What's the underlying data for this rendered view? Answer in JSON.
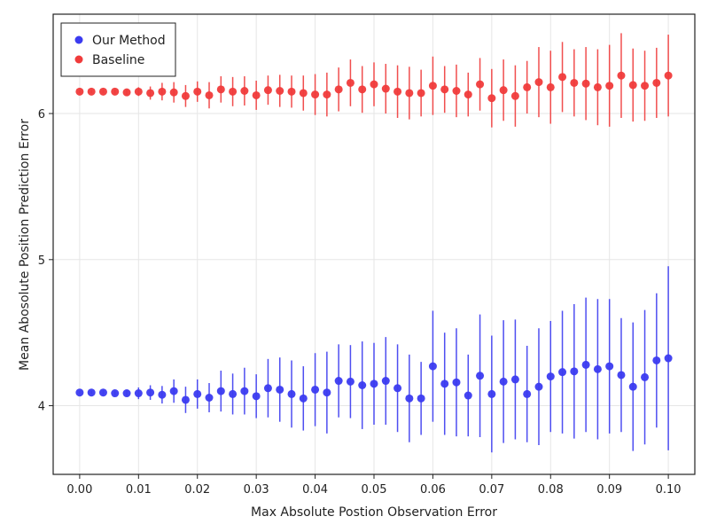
{
  "chart_data": {
    "type": "scatter",
    "title": "",
    "xlabel": "Max Absolute Postion Observation Error",
    "ylabel": "Mean Abosolute Position Prediction Error",
    "xlim": [
      -0.0045,
      0.1045
    ],
    "ylim": [
      3.53,
      6.68
    ],
    "xticks": [
      0.0,
      0.01,
      0.02,
      0.03,
      0.04,
      0.05,
      0.06,
      0.07,
      0.08,
      0.09,
      0.1
    ],
    "xtick_labels": [
      "0.00",
      "0.01",
      "0.02",
      "0.03",
      "0.04",
      "0.05",
      "0.06",
      "0.07",
      "0.08",
      "0.09",
      "0.10"
    ],
    "yticks": [
      4,
      5,
      6
    ],
    "ytick_labels": [
      "4",
      "5",
      "6"
    ],
    "grid": true,
    "legend_position": "top-left",
    "x": [
      0.0,
      0.002,
      0.004,
      0.006,
      0.008,
      0.01,
      0.012,
      0.014,
      0.016,
      0.018,
      0.02,
      0.022,
      0.024,
      0.026,
      0.028,
      0.03,
      0.032,
      0.034,
      0.036,
      0.038,
      0.04,
      0.042,
      0.044,
      0.046,
      0.048,
      0.05,
      0.052,
      0.054,
      0.056,
      0.058,
      0.06,
      0.062,
      0.064,
      0.066,
      0.068,
      0.07,
      0.072,
      0.074,
      0.076,
      0.078,
      0.08,
      0.082,
      0.084,
      0.086,
      0.088,
      0.09,
      0.092,
      0.094,
      0.096,
      0.098,
      0.1
    ],
    "series": [
      {
        "name": "Our Method",
        "color": "#3b3bf0",
        "values": [
          4.09,
          4.09,
          4.09,
          4.085,
          4.085,
          4.085,
          4.09,
          4.075,
          4.1,
          4.04,
          4.08,
          4.055,
          4.1,
          4.08,
          4.1,
          4.065,
          4.12,
          4.11,
          4.08,
          4.05,
          4.11,
          4.09,
          4.17,
          4.165,
          4.14,
          4.15,
          4.17,
          4.12,
          4.05,
          4.05,
          4.27,
          4.15,
          4.16,
          4.07,
          4.205,
          4.08,
          4.165,
          4.18,
          4.08,
          4.13,
          4.2,
          4.23,
          4.235,
          4.28,
          4.25,
          4.27,
          4.21,
          4.13,
          4.195,
          4.31,
          4.325
        ],
        "errors": [
          0.01,
          0.01,
          0.015,
          0.015,
          0.02,
          0.04,
          0.05,
          0.06,
          0.08,
          0.09,
          0.1,
          0.1,
          0.14,
          0.14,
          0.16,
          0.15,
          0.2,
          0.22,
          0.23,
          0.22,
          0.25,
          0.28,
          0.25,
          0.25,
          0.3,
          0.28,
          0.3,
          0.3,
          0.3,
          0.25,
          0.38,
          0.35,
          0.37,
          0.28,
          0.42,
          0.4,
          0.42,
          0.41,
          0.33,
          0.4,
          0.38,
          0.42,
          0.46,
          0.46,
          0.48,
          0.46,
          0.39,
          0.44,
          0.46,
          0.46,
          0.63
        ]
      },
      {
        "name": "Baseline",
        "color": "#f03b3b",
        "values": [
          6.15,
          6.15,
          6.15,
          6.15,
          6.145,
          6.15,
          6.14,
          6.15,
          6.145,
          6.12,
          6.15,
          6.125,
          6.165,
          6.15,
          6.155,
          6.125,
          6.16,
          6.155,
          6.15,
          6.14,
          6.13,
          6.13,
          6.165,
          6.21,
          6.165,
          6.2,
          6.17,
          6.15,
          6.14,
          6.14,
          6.19,
          6.165,
          6.155,
          6.13,
          6.2,
          6.105,
          6.16,
          6.12,
          6.18,
          6.215,
          6.18,
          6.25,
          6.21,
          6.205,
          6.18,
          6.19,
          6.26,
          6.195,
          6.19,
          6.21,
          6.26
        ],
        "errors": [
          0.01,
          0.01,
          0.01,
          0.015,
          0.02,
          0.03,
          0.045,
          0.06,
          0.07,
          0.075,
          0.07,
          0.09,
          0.09,
          0.1,
          0.1,
          0.1,
          0.1,
          0.11,
          0.11,
          0.12,
          0.14,
          0.15,
          0.15,
          0.16,
          0.16,
          0.15,
          0.17,
          0.18,
          0.18,
          0.16,
          0.2,
          0.16,
          0.18,
          0.15,
          0.18,
          0.2,
          0.21,
          0.21,
          0.18,
          0.24,
          0.25,
          0.24,
          0.23,
          0.25,
          0.26,
          0.28,
          0.29,
          0.25,
          0.24,
          0.24,
          0.28
        ]
      }
    ]
  }
}
